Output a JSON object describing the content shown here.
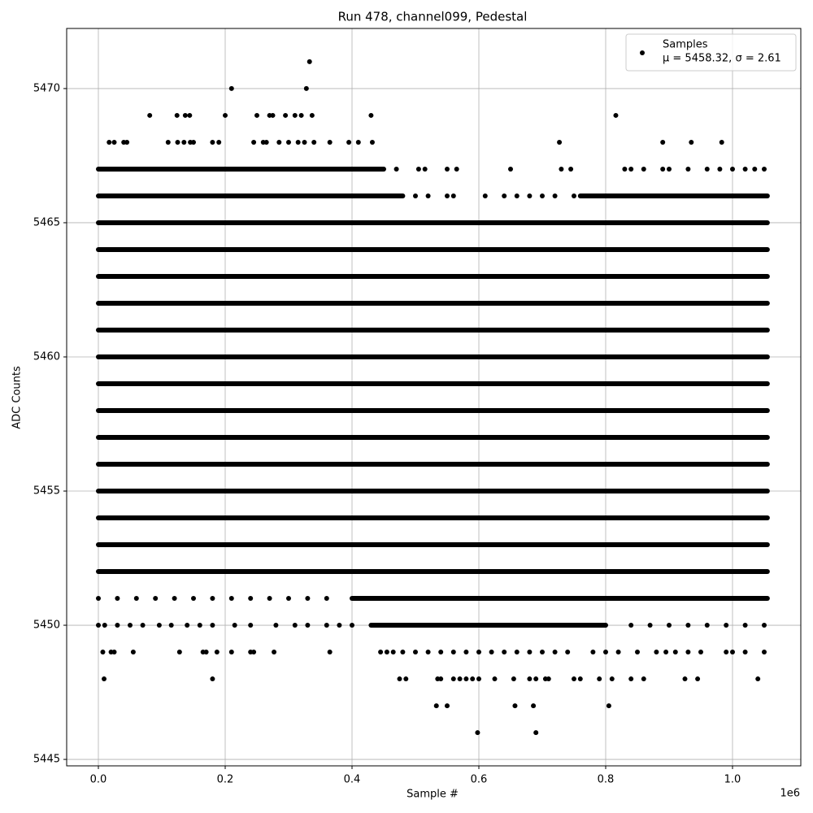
{
  "chart_data": {
    "type": "scatter",
    "title": "Run 478, channel099, Pedestal",
    "xlabel": "Sample #",
    "ylabel": "ADC Counts",
    "x_offset_label": "1e6",
    "xlim": [
      -50000,
      1107700
    ],
    "ylim": [
      5444.76,
      5472.24
    ],
    "xticks": [
      {
        "value": 0,
        "label": "0.0"
      },
      {
        "value": 200000,
        "label": "0.2"
      },
      {
        "value": 400000,
        "label": "0.4"
      },
      {
        "value": 600000,
        "label": "0.6"
      },
      {
        "value": 800000,
        "label": "0.8"
      },
      {
        "value": 1000000,
        "label": "1.0"
      }
    ],
    "yticks": [
      5445,
      5450,
      5455,
      5460,
      5465,
      5470
    ],
    "grid": true,
    "legend_loc": "upper right",
    "legend_note": "μ = 5458.32, σ = 2.61",
    "series": [
      {
        "name": "Samples",
        "color": "#000000",
        "x": [
          333000,
          210000,
          328000,
          81000,
          124000,
          137000,
          144000,
          200000,
          250000,
          270000,
          275000,
          295000,
          310000,
          320000,
          337000,
          430000,
          816000,
          17000,
          25000,
          40000,
          45000,
          110000,
          125000,
          135000,
          145000,
          150000,
          180000,
          190000,
          245000,
          260000,
          265000,
          285000,
          300000,
          315000,
          325000,
          340000,
          365000,
          395000,
          410000,
          432000,
          727000,
          890000,
          935000,
          983000,
          470000,
          505000,
          515000,
          550000,
          565000,
          650000,
          730000,
          745000,
          830000,
          840000,
          860000,
          890000,
          900000,
          930000,
          960000,
          980000,
          1000000,
          1020000,
          1035000,
          1050000,
          500000,
          520000,
          550000,
          560000,
          610000,
          640000,
          660000,
          680000,
          700000,
          720000,
          750000,
          0,
          30000,
          60000,
          90000,
          120000,
          150000,
          180000,
          210000,
          240000,
          270000,
          300000,
          330000,
          360000,
          0,
          10000,
          30000,
          50000,
          70000,
          96000,
          115000,
          140000,
          160000,
          180000,
          215000,
          240000,
          280000,
          310000,
          330000,
          360000,
          380000,
          400000,
          840000,
          870000,
          900000,
          930000,
          960000,
          990000,
          1020000,
          1050000,
          7000,
          20000,
          25000,
          55000,
          128000,
          165000,
          170000,
          187000,
          210000,
          240000,
          245000,
          277000,
          365000,
          445000,
          455000,
          465000,
          480000,
          500000,
          520000,
          540000,
          560000,
          580000,
          600000,
          620000,
          640000,
          660000,
          680000,
          700000,
          720000,
          740000,
          780000,
          800000,
          820000,
          850000,
          880000,
          895000,
          910000,
          930000,
          950000,
          990000,
          1000000,
          1020000,
          1050000,
          9000,
          180000,
          475000,
          485000,
          535000,
          540000,
          560000,
          570000,
          580000,
          590000,
          600000,
          625000,
          655000,
          680000,
          690000,
          705000,
          710000,
          750000,
          760000,
          790000,
          810000,
          840000,
          860000,
          925000,
          945000,
          1040000,
          533000,
          550000,
          657000,
          686000,
          805000,
          598000,
          690000
        ],
        "y": [
          5471,
          5470,
          5470,
          5469,
          5469,
          5469,
          5469,
          5469,
          5469,
          5469,
          5469,
          5469,
          5469,
          5469,
          5469,
          5469,
          5469,
          5468,
          5468,
          5468,
          5468,
          5468,
          5468,
          5468,
          5468,
          5468,
          5468,
          5468,
          5468,
          5468,
          5468,
          5468,
          5468,
          5468,
          5468,
          5468,
          5468,
          5468,
          5468,
          5468,
          5468,
          5468,
          5468,
          5468,
          5467,
          5467,
          5467,
          5467,
          5467,
          5467,
          5467,
          5467,
          5467,
          5467,
          5467,
          5467,
          5467,
          5467,
          5467,
          5467,
          5467,
          5467,
          5467,
          5467,
          5466,
          5466,
          5466,
          5466,
          5466,
          5466,
          5466,
          5466,
          5466,
          5466,
          5466,
          5451,
          5451,
          5451,
          5451,
          5451,
          5451,
          5451,
          5451,
          5451,
          5451,
          5451,
          5451,
          5451,
          5450,
          5450,
          5450,
          5450,
          5450,
          5450,
          5450,
          5450,
          5450,
          5450,
          5450,
          5450,
          5450,
          5450,
          5450,
          5450,
          5450,
          5450,
          5450,
          5450,
          5450,
          5450,
          5450,
          5450,
          5450,
          5450,
          5449,
          5449,
          5449,
          5449,
          5449,
          5449,
          5449,
          5449,
          5449,
          5449,
          5449,
          5449,
          5449,
          5449,
          5449,
          5449,
          5449,
          5449,
          5449,
          5449,
          5449,
          5449,
          5449,
          5449,
          5449,
          5449,
          5449,
          5449,
          5449,
          5449,
          5449,
          5449,
          5449,
          5449,
          5449,
          5449,
          5449,
          5449,
          5449,
          5449,
          5449,
          5449,
          5449,
          5448,
          5448,
          5448,
          5448,
          5448,
          5448,
          5448,
          5448,
          5448,
          5448,
          5448,
          5448,
          5448,
          5448,
          5448,
          5448,
          5448,
          5448,
          5448,
          5448,
          5448,
          5448,
          5448,
          5448,
          5448,
          5448,
          5447,
          5447,
          5447,
          5447,
          5447,
          5446,
          5446
        ],
        "dense_rows": [
          {
            "y": 5467,
            "x": [
              0,
              450000
            ]
          },
          {
            "y": 5466,
            "x": [
              0,
              480000
            ]
          },
          {
            "y": 5466,
            "x": [
              760000,
              1055000
            ]
          },
          {
            "y": 5465,
            "x": [
              0,
              1055000
            ]
          },
          {
            "y": 5464,
            "x": [
              0,
              1055000
            ]
          },
          {
            "y": 5463,
            "x": [
              0,
              1055000
            ]
          },
          {
            "y": 5462,
            "x": [
              0,
              1055000
            ]
          },
          {
            "y": 5461,
            "x": [
              0,
              1055000
            ]
          },
          {
            "y": 5460,
            "x": [
              0,
              1055000
            ]
          },
          {
            "y": 5459,
            "x": [
              0,
              1055000
            ]
          },
          {
            "y": 5458,
            "x": [
              0,
              1055000
            ]
          },
          {
            "y": 5457,
            "x": [
              0,
              1055000
            ]
          },
          {
            "y": 5456,
            "x": [
              0,
              1055000
            ]
          },
          {
            "y": 5455,
            "x": [
              0,
              1055000
            ]
          },
          {
            "y": 5454,
            "x": [
              0,
              1055000
            ]
          },
          {
            "y": 5453,
            "x": [
              0,
              1055000
            ]
          },
          {
            "y": 5452,
            "x": [
              0,
              1055000
            ]
          },
          {
            "y": 5451,
            "x": [
              400000,
              1055000
            ]
          },
          {
            "y": 5450,
            "x": [
              430000,
              800000
            ]
          }
        ]
      }
    ]
  }
}
